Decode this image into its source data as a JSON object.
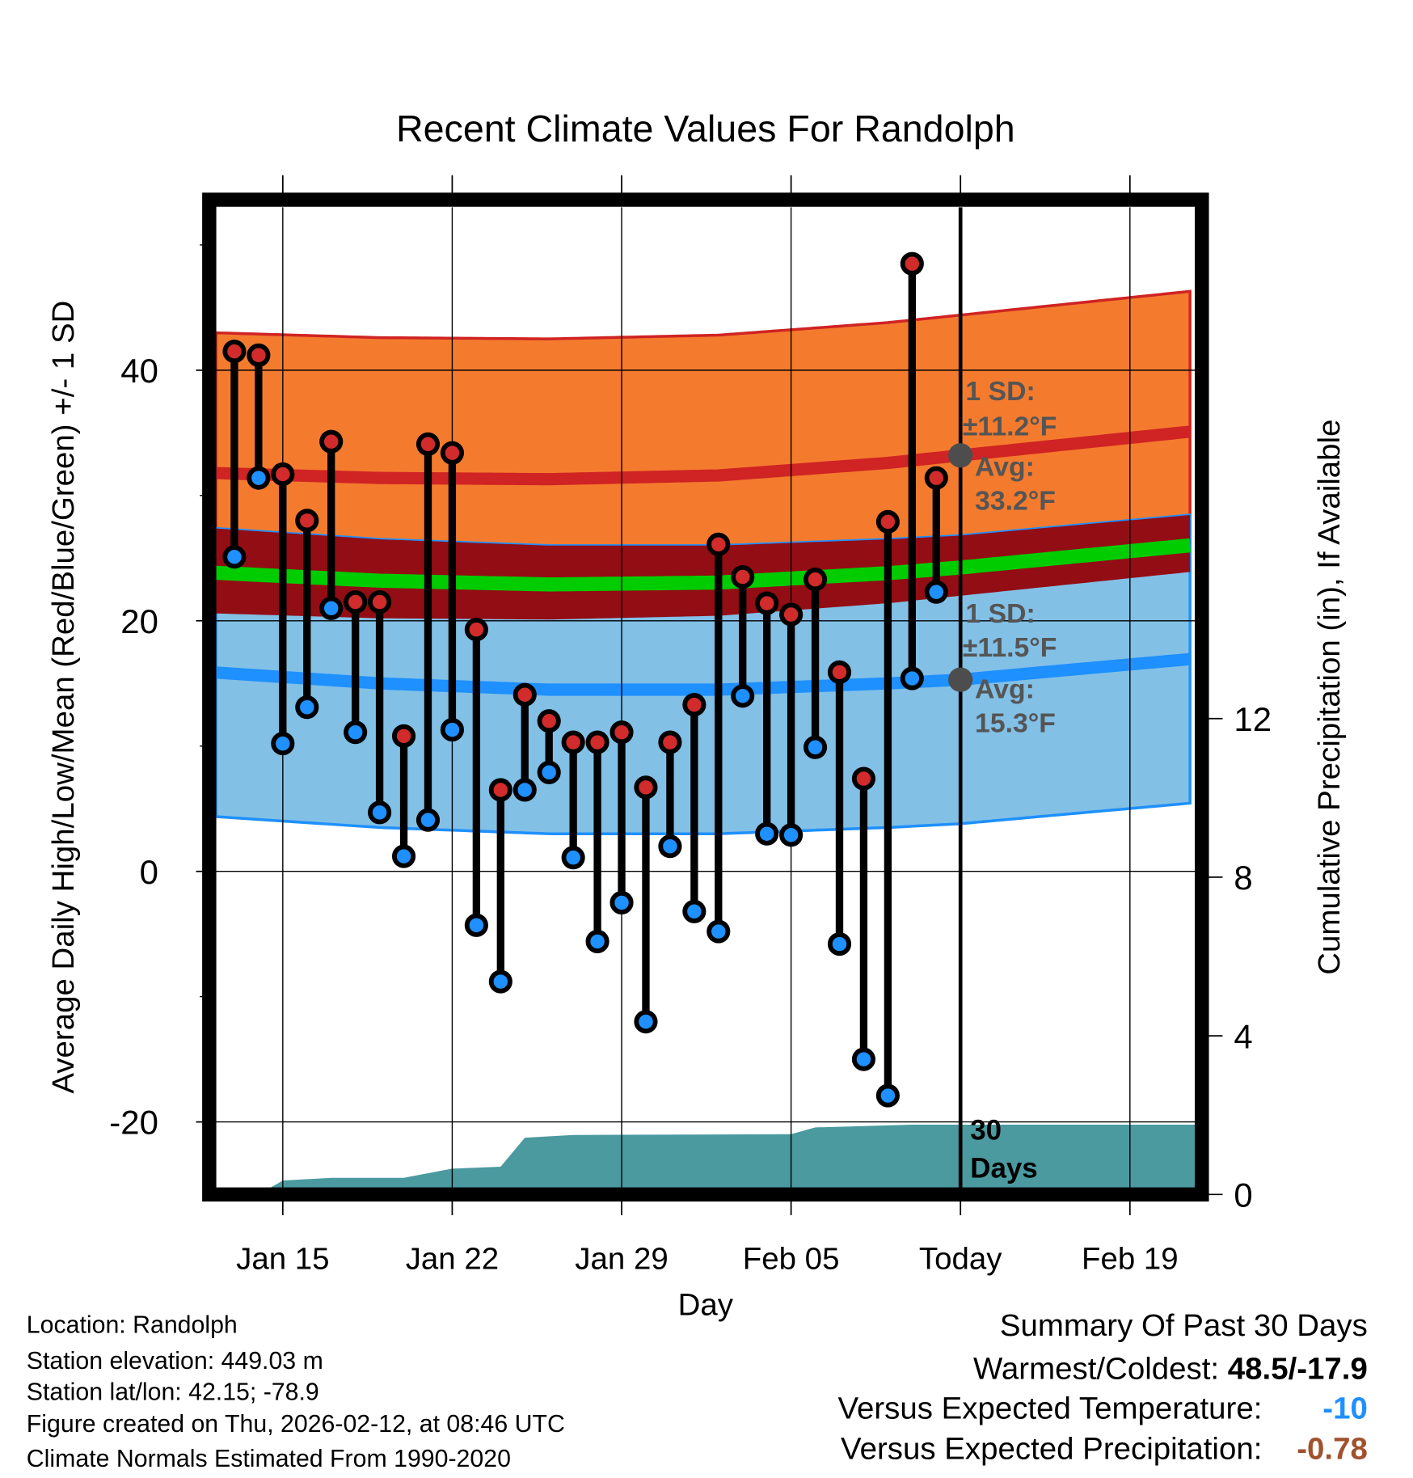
{
  "chart_data": {
    "type": "line",
    "title": "Recent Climate Values For Randolph",
    "xlabel": "Day",
    "ylabel": "Average Daily High/Low/Mean (Red/Blue/Green) +/- 1 SD",
    "y2label": "Cumulative Precipitation (in), If Available",
    "ylim": [
      -25.3,
      53.4
    ],
    "y2lim": [
      0,
      20.2
    ],
    "yticks": [
      "40",
      "20",
      "0",
      "-20"
    ],
    "ytick_values": [
      40,
      20,
      0,
      -20
    ],
    "y2ticks": [
      "12",
      "8",
      "4",
      "0"
    ],
    "y2tick_values": [
      12,
      8,
      4,
      0
    ],
    "xticks": [
      "Jan 15",
      "Jan 22",
      "Jan 29",
      "Feb 05",
      "Today",
      "Feb 19"
    ],
    "xtick_dates": [
      "Jan 15",
      "Jan 22",
      "Jan 29",
      "Feb 5",
      "Feb 12",
      "Feb 19"
    ],
    "grid": true,
    "observed": [
      {
        "date": "Jan 13",
        "high": 41.5,
        "low": 25.1
      },
      {
        "date": "Jan 14",
        "high": 41.2,
        "low": 31.4
      },
      {
        "date": "Jan 15",
        "high": 31.7,
        "low": 10.2
      },
      {
        "date": "Jan 16",
        "high": 28.0,
        "low": 13.1
      },
      {
        "date": "Jan 17",
        "high": 34.3,
        "low": 21.0
      },
      {
        "date": "Jan 18",
        "high": 21.5,
        "low": 11.1
      },
      {
        "date": "Jan 19",
        "high": 21.5,
        "low": 4.7
      },
      {
        "date": "Jan 20",
        "high": 10.8,
        "low": 1.2
      },
      {
        "date": "Jan 21",
        "high": 34.1,
        "low": 4.1
      },
      {
        "date": "Jan 22",
        "high": 33.4,
        "low": 11.3
      },
      {
        "date": "Jan 23",
        "high": 19.3,
        "low": -4.3
      },
      {
        "date": "Jan 24",
        "high": 6.5,
        "low": -8.8
      },
      {
        "date": "Jan 25",
        "high": 14.1,
        "low": 6.5
      },
      {
        "date": "Jan 26",
        "high": 12.0,
        "low": 7.9
      },
      {
        "date": "Jan 27",
        "high": 10.3,
        "low": 1.1
      },
      {
        "date": "Jan 28",
        "high": 10.3,
        "low": -5.6
      },
      {
        "date": "Jan 29",
        "high": 11.1,
        "low": -2.5
      },
      {
        "date": "Jan 30",
        "high": 6.7,
        "low": -12.0
      },
      {
        "date": "Jan 31",
        "high": 10.3,
        "low": 2.0
      },
      {
        "date": "Feb 1",
        "high": 13.3,
        "low": -3.2
      },
      {
        "date": "Feb 2",
        "high": 26.1,
        "low": -4.8
      },
      {
        "date": "Feb 3",
        "high": 23.5,
        "low": 14.0
      },
      {
        "date": "Feb 4",
        "high": 21.4,
        "low": 3.0
      },
      {
        "date": "Feb 5",
        "high": 20.5,
        "low": 2.9
      },
      {
        "date": "Feb 6",
        "high": 23.3,
        "low": 9.9
      },
      {
        "date": "Feb 7",
        "high": 15.9,
        "low": -5.8
      },
      {
        "date": "Feb 8",
        "high": 7.4,
        "low": -15.0
      },
      {
        "date": "Feb 9",
        "high": 27.9,
        "low": -17.9
      },
      {
        "date": "Feb 10",
        "high": 48.5,
        "low": 15.4
      },
      {
        "date": "Feb 11",
        "high": 31.4,
        "low": 22.3
      }
    ],
    "normals": {
      "high_sd": 11.2,
      "low_sd": 11.5,
      "points": [
        {
          "date": "Jan 12",
          "high": 31.8,
          "low": 15.9
        },
        {
          "date": "Jan 19",
          "high": 31.4,
          "low": 15.0
        },
        {
          "date": "Jan 26",
          "high": 31.3,
          "low": 14.5
        },
        {
          "date": "Feb 2",
          "high": 31.6,
          "low": 14.5
        },
        {
          "date": "Feb 9",
          "high": 32.6,
          "low": 15.0
        },
        {
          "date": "Feb 12",
          "high": 33.2,
          "low": 15.3
        },
        {
          "date": "Feb 16",
          "high": 34.0,
          "low": 16.0
        },
        {
          "date": "Feb 23",
          "high": 35.4,
          "low": 17.2
        }
      ]
    },
    "precip_cumulative": [
      {
        "date": "Jan 12",
        "value": 0
      },
      {
        "date": "Jan 14",
        "value": 0
      },
      {
        "date": "Jan 15",
        "value": 0.35
      },
      {
        "date": "Jan 17",
        "value": 0.42
      },
      {
        "date": "Jan 20",
        "value": 0.42
      },
      {
        "date": "Jan 22",
        "value": 0.65
      },
      {
        "date": "Jan 24",
        "value": 0.7
      },
      {
        "date": "Jan 25",
        "value": 1.43
      },
      {
        "date": "Jan 27",
        "value": 1.5
      },
      {
        "date": "Feb 5",
        "value": 1.52
      },
      {
        "date": "Feb 6",
        "value": 1.69
      },
      {
        "date": "Feb 10",
        "value": 1.76
      },
      {
        "date": "Feb 23",
        "value": 1.76
      }
    ],
    "annotations": {
      "high_sd": "1 SD:",
      "high_sd_value": "±11.2°F",
      "high_avg": "Avg:",
      "high_avg_value": "33.2°F",
      "low_sd": "1 SD:",
      "low_sd_value": "±11.5°F",
      "low_avg": "Avg:",
      "low_avg_value": "15.3°F",
      "days_num": "30",
      "days_word": "Days"
    },
    "colors": {
      "high_band": "#f47b2e",
      "overlap_band": "#930d14",
      "low_band": "#82c0e6",
      "high_line": "#d02323",
      "low_line": "#1e90ff",
      "mean_line": "#00cc00",
      "precip": "#4a9aa0",
      "high_dot": "#d12b2b",
      "low_dot": "#1e90ff",
      "annotation": "#555555"
    }
  },
  "info": {
    "location": "Location: Randolph",
    "elevation": "Station elevation: 449.03 m",
    "latlon": "Station lat/lon: 42.15; -78.9",
    "created": "Figure created on Thu, 2026-02-12, at 08:46 UTC",
    "normals": "Climate Normals Estimated From 1990-2020"
  },
  "summary": {
    "title": "Summary Of Past 30 Days",
    "warmest_label": "Warmest/Coldest:",
    "warmest_value": "48.5/-17.9",
    "temp_label": "Versus Expected Temperature:",
    "temp_value": "-10",
    "temp_color": "#1e90ff",
    "precip_label": "Versus Expected Precipitation:",
    "precip_value": "-0.78",
    "precip_color": "#a0522d"
  }
}
